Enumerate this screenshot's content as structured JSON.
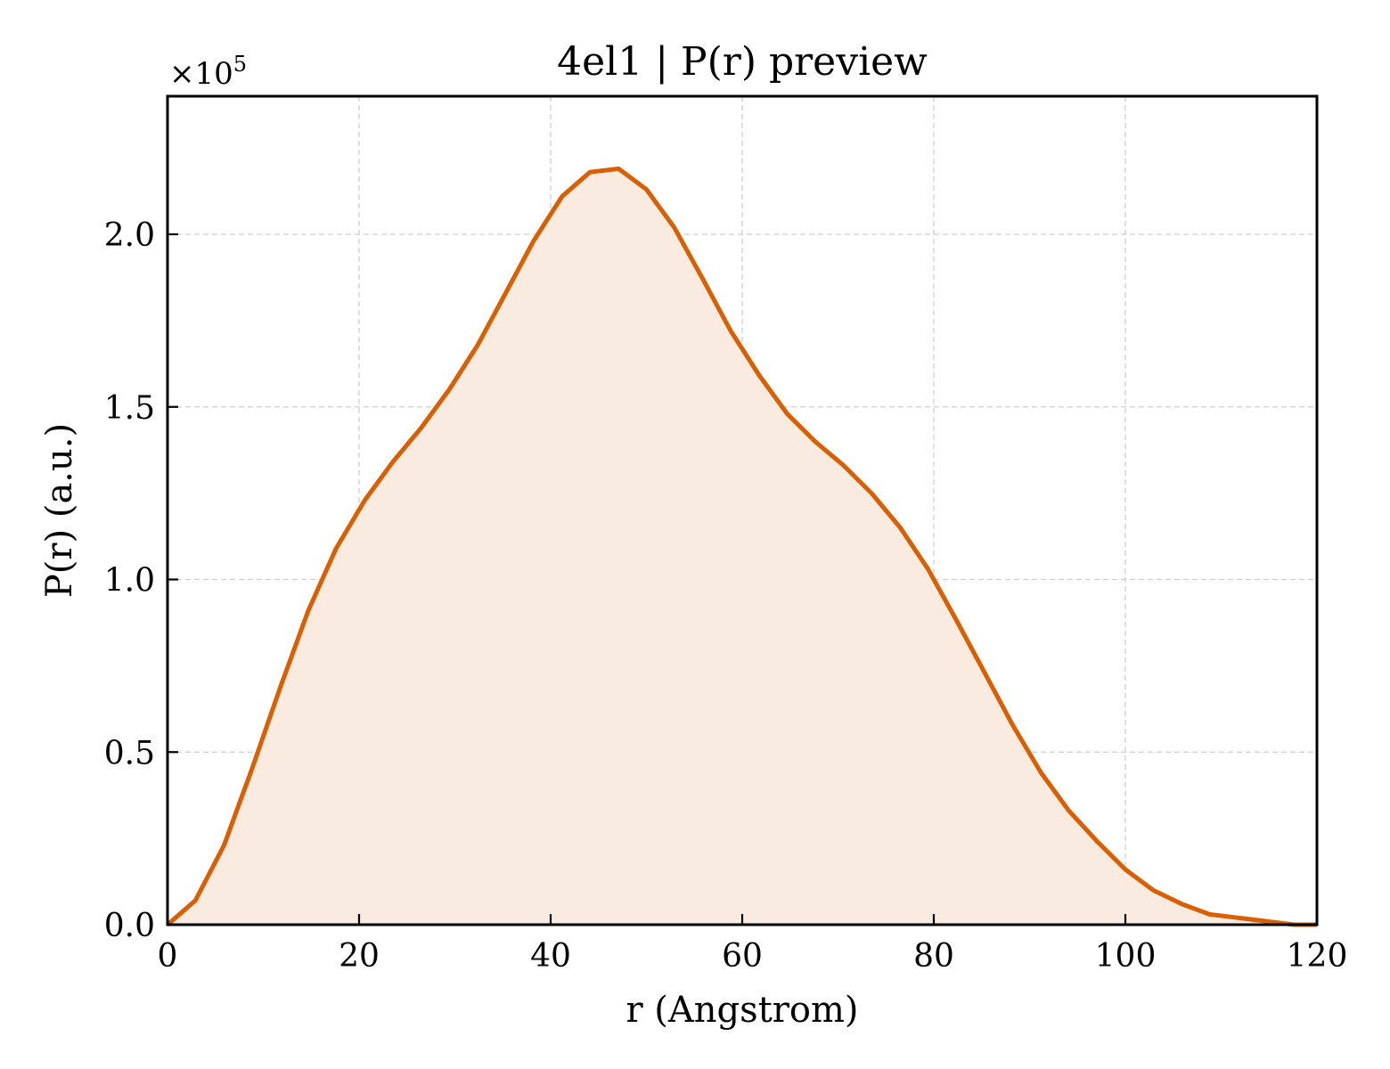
{
  "chart_data": {
    "type": "area",
    "title": "4el1 | P(r) preview",
    "xlabel": "r (Angstrom)",
    "ylabel": "P(r) (a.u.)",
    "y_multiplier": "×10",
    "y_multiplier_exp": "5",
    "xlim": [
      0,
      120
    ],
    "ylim": [
      0,
      2.4
    ],
    "grid": true,
    "legend": "none",
    "line_color": "#d95f02",
    "fill_color": "#f9ebe0",
    "xticks": [
      0,
      20,
      40,
      60,
      80,
      100,
      120
    ],
    "xtick_labels": [
      "0",
      "20",
      "40",
      "60",
      "80",
      "100",
      "120"
    ],
    "yticks": [
      0,
      0.5,
      1.0,
      1.5,
      2.0
    ],
    "ytick_labels": [
      "0.0",
      "0.5",
      "1.0",
      "1.5",
      "2.0"
    ],
    "x": [
      0,
      2.9,
      5.9,
      8.8,
      11.8,
      14.7,
      17.6,
      20.6,
      23.5,
      26.5,
      29.4,
      32.4,
      35.3,
      38.2,
      41.2,
      44.1,
      47.1,
      50.0,
      52.9,
      55.9,
      58.8,
      61.8,
      64.7,
      67.6,
      70.6,
      73.5,
      76.5,
      79.4,
      82.4,
      85.3,
      88.2,
      91.2,
      94.1,
      97.1,
      100.0,
      102.9,
      105.9,
      108.8,
      111.8,
      114.7,
      117.6,
      120.0
    ],
    "y": [
      0.0,
      0.07,
      0.23,
      0.45,
      0.69,
      0.91,
      1.09,
      1.23,
      1.34,
      1.44,
      1.55,
      1.68,
      1.83,
      1.98,
      2.11,
      2.18,
      2.19,
      2.13,
      2.02,
      1.87,
      1.72,
      1.59,
      1.48,
      1.4,
      1.33,
      1.25,
      1.15,
      1.03,
      0.88,
      0.73,
      0.58,
      0.44,
      0.33,
      0.24,
      0.16,
      0.1,
      0.06,
      0.03,
      0.02,
      0.01,
      0.0,
      0.0
    ]
  }
}
